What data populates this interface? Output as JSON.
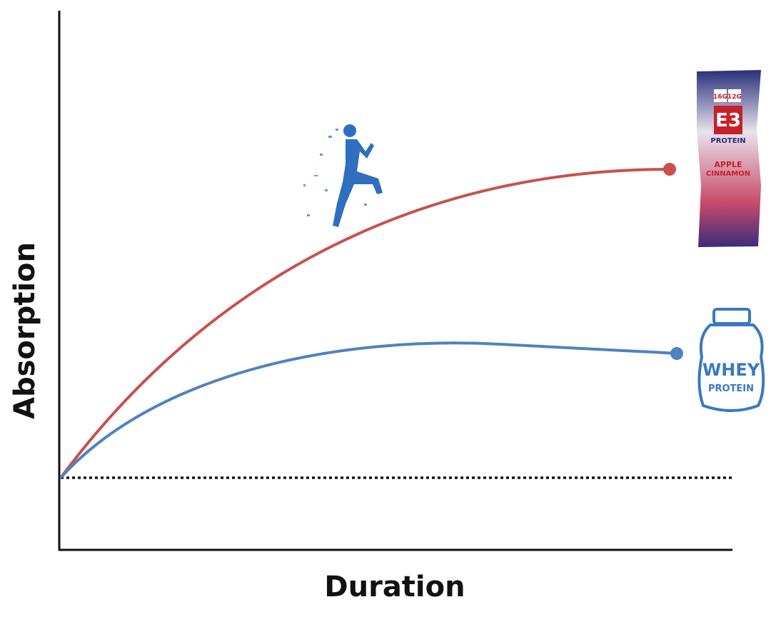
{
  "axes": {
    "x_label": "Duration",
    "y_label": "Absorption"
  },
  "protein_bar": {
    "badge_1": "16G",
    "badge_2": "12G",
    "brand": "E3",
    "line_1": "PROTEIN",
    "flavor_1": "APPLE",
    "flavor_2": "CINNAMON"
  },
  "whey_jar": {
    "line_1": "WHEY",
    "line_2": "PROTEIN"
  }
}
